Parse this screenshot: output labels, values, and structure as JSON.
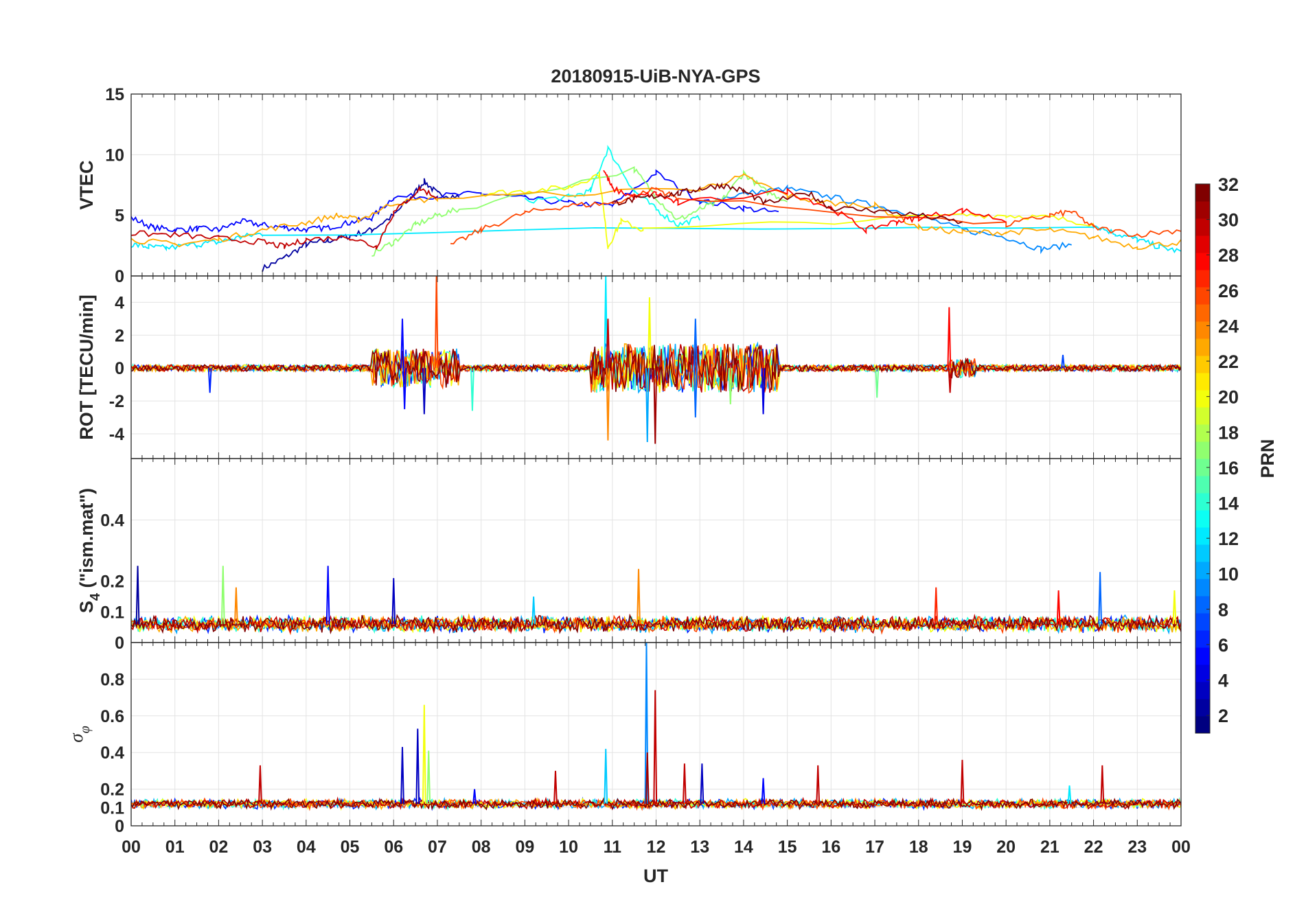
{
  "chart_data": {
    "type": "line",
    "title": "20180915-UiB-NYA-GPS",
    "xlabel": "UT",
    "xlim": [
      0,
      24
    ],
    "x_tick_labels": [
      "00",
      "01",
      "02",
      "03",
      "04",
      "05",
      "06",
      "07",
      "08",
      "09",
      "10",
      "11",
      "12",
      "13",
      "14",
      "15",
      "16",
      "17",
      "18",
      "19",
      "20",
      "21",
      "22",
      "23",
      "00"
    ],
    "grid": true,
    "colorbar": {
      "label": "PRN",
      "range": [
        1,
        32
      ],
      "ticks": [
        "2",
        "4",
        "6",
        "8",
        "10",
        "12",
        "14",
        "16",
        "18",
        "20",
        "22",
        "24",
        "26",
        "28",
        "30",
        "32"
      ],
      "colormap": "jet",
      "placement": "right"
    },
    "panels": [
      {
        "name": "vtec",
        "ylabel": "VTEC",
        "ylim": [
          0,
          15
        ],
        "yticks": [
          0,
          5,
          10,
          15
        ],
        "ytick_labels": [
          "0",
          "5",
          "10",
          "15"
        ],
        "noise": 0.25,
        "series": [
          {
            "prn": 2,
            "x": [
              3.0,
              3.5,
              4.0,
              4.5,
              5.0,
              5.5,
              6.0,
              6.4,
              6.7,
              7.0,
              7.5
            ],
            "y": [
              0.6,
              1.5,
              2.6,
              2.9,
              3.3,
              3.8,
              5.0,
              6.5,
              7.8,
              6.8,
              6.5
            ]
          },
          {
            "prn": 5,
            "x": [
              0,
              0.5,
              1,
              1.5,
              2,
              2.5,
              3,
              3.5,
              4,
              4.5,
              5,
              5.5,
              6,
              7,
              8,
              9,
              10,
              11,
              12,
              13,
              14,
              14.8
            ],
            "y": [
              4.8,
              4.0,
              3.8,
              3.9,
              3.8,
              4.5,
              4.2,
              4.0,
              3.8,
              4.0,
              4.4,
              4.8,
              6.5,
              6.6,
              6.8,
              6.4,
              6.0,
              5.8,
              8.5,
              6.2,
              5.6,
              5.2
            ]
          },
          {
            "prn": 9,
            "x": [
              13,
              14,
              15,
              16,
              17,
              18,
              19,
              20,
              20.8,
              21.5
            ],
            "y": [
              6.0,
              6.8,
              7.2,
              6.5,
              5.8,
              5.0,
              3.8,
              3.2,
              2.2,
              2.6
            ]
          },
          {
            "prn": 12,
            "x": [
              0,
              0.4,
              0.8,
              1.5,
              2,
              2.5,
              3,
              22,
              22.5,
              23,
              23.5,
              24
            ],
            "y": [
              2.6,
              2.4,
              2.3,
              2.6,
              2.8,
              3.2,
              3.5,
              4.2,
              3.5,
              3.0,
              2.4,
              2.0
            ]
          },
          {
            "prn": 13,
            "x": [
              9,
              10,
              10.5,
              10.9,
              11.5,
              12,
              12.5,
              13
            ],
            "y": [
              6.2,
              6.5,
              7.0,
              10.5,
              7.0,
              5.5,
              4.2,
              4.8
            ]
          },
          {
            "prn": 17,
            "x": [
              5.5,
              6,
              6.5,
              7,
              7.5,
              11.5,
              12,
              12.5,
              13,
              13.5,
              14,
              14.5,
              15
            ],
            "y": [
              1.8,
              2.8,
              4.2,
              5.0,
              5.5,
              8.8,
              6.5,
              4.6,
              5.5,
              6.2,
              8.5,
              7.0,
              6.2
            ]
          },
          {
            "prn": 20,
            "x": [
              8,
              9,
              10,
              10.7,
              10.9,
              11.2,
              11.7,
              19,
              20,
              21,
              22
            ],
            "y": [
              6.8,
              7.0,
              7.3,
              8.4,
              2.4,
              4.5,
              3.8,
              5.0,
              5.0,
              4.8,
              4.3
            ]
          },
          {
            "prn": 23,
            "x": [
              0,
              1,
              2,
              3,
              4,
              4.7,
              5.2,
              6,
              7,
              13,
              14,
              15,
              16,
              17,
              18,
              19,
              20,
              21,
              22,
              23,
              24
            ],
            "y": [
              3.0,
              2.6,
              3.0,
              3.8,
              4.4,
              5.0,
              4.6,
              6.0,
              6.4,
              7.2,
              8.2,
              6.6,
              6.0,
              5.8,
              4.0,
              3.6,
              3.6,
              3.8,
              3.2,
              2.4,
              2.8
            ]
          },
          {
            "prn": 26,
            "x": [
              7.3,
              8,
              9,
              10,
              11,
              12,
              12.5,
              20,
              21,
              21.5,
              22,
              23,
              24
            ],
            "y": [
              2.5,
              3.8,
              5.2,
              5.8,
              6.0,
              7.2,
              6.4,
              4.2,
              5.0,
              5.3,
              4.0,
              3.4,
              3.8
            ]
          },
          {
            "prn": 28,
            "x": [
              10.8,
              11,
              11.5,
              12,
              12.5,
              15,
              16,
              16.8,
              17.5,
              18,
              19,
              20
            ],
            "y": [
              8.8,
              7.2,
              6.5,
              6.8,
              6.0,
              7.0,
              5.6,
              3.8,
              4.5,
              4.8,
              5.4,
              4.6
            ]
          },
          {
            "prn": 30,
            "x": [
              0,
              1,
              2,
              3,
              3.5,
              4,
              5,
              5.6,
              6,
              6.6,
              7
            ],
            "y": [
              3.5,
              3.4,
              3.1,
              2.8,
              2.4,
              3.0,
              3.2,
              2.4,
              5.2,
              7.2,
              6.5
            ]
          },
          {
            "prn": 32,
            "x": [
              11,
              11.5,
              12,
              12.5,
              13,
              13.5,
              14,
              14.5,
              15.5,
              16,
              17,
              18,
              19
            ],
            "y": [
              6.0,
              6.3,
              6.6,
              6.8,
              7.2,
              7.5,
              7.0,
              6.0,
              6.8,
              5.6,
              5.4,
              5.0,
              4.4
            ]
          }
        ]
      },
      {
        "name": "rot",
        "ylabel": "ROT [TECU/min]",
        "ylim": [
          -5.5,
          5.6
        ],
        "yticks": [
          -4,
          -2,
          0,
          2,
          4
        ],
        "ytick_labels": [
          "-4",
          "-2",
          "0",
          "2",
          "4"
        ],
        "baseline": 0,
        "noise": 0.2,
        "active_windows": [
          [
            5.5,
            7.5,
            1.2
          ],
          [
            10.5,
            14.8,
            1.5
          ],
          [
            18.7,
            19.3,
            0.6
          ]
        ],
        "spikes": [
          {
            "prn": 5,
            "x": 6.2,
            "y": 3.0
          },
          {
            "prn": 5,
            "x": 6.25,
            "y": -2.5
          },
          {
            "prn": 3,
            "x": 6.7,
            "y": -2.8
          },
          {
            "prn": 26,
            "x": 6.98,
            "y": 5.6
          },
          {
            "prn": 14,
            "x": 7.8,
            "y": -2.6
          },
          {
            "prn": 12,
            "x": 10.85,
            "y": 5.6
          },
          {
            "prn": 24,
            "x": 10.9,
            "y": -4.4
          },
          {
            "prn": 30,
            "x": 10.9,
            "y": 3.0
          },
          {
            "prn": 10,
            "x": 11.8,
            "y": -4.5
          },
          {
            "prn": 20,
            "x": 11.85,
            "y": 4.3
          },
          {
            "prn": 31,
            "x": 11.98,
            "y": -4.6
          },
          {
            "prn": 8,
            "x": 12.9,
            "y": -3.0
          },
          {
            "prn": 8,
            "x": 12.9,
            "y": 3.0
          },
          {
            "prn": 17,
            "x": 13.7,
            "y": -2.2
          },
          {
            "prn": 4,
            "x": 14.45,
            "y": -2.8
          },
          {
            "prn": 28,
            "x": 18.7,
            "y": 3.7
          },
          {
            "prn": 30,
            "x": 18.72,
            "y": -1.5
          },
          {
            "prn": 16,
            "x": 17.05,
            "y": -1.8
          },
          {
            "prn": 6,
            "x": 1.8,
            "y": -1.5
          },
          {
            "prn": 7,
            "x": 21.3,
            "y": 0.8
          }
        ]
      },
      {
        "name": "s4",
        "ylabel": "S4 (\"ism.mat\")",
        "ylabel_main": "S",
        "ylabel_sub": "4",
        "ylabel_rest": " (\"ism.mat\")",
        "ylim": [
          0,
          0.6
        ],
        "yticks": [
          0,
          0.1,
          0.2,
          0.4
        ],
        "ytick_labels": [
          "0",
          "0.1",
          "0.2",
          "0.4"
        ],
        "baseline": 0.06,
        "noise": 0.02,
        "spikes": [
          {
            "prn": 2,
            "x": 0.15,
            "y": 0.25
          },
          {
            "prn": 17,
            "x": 2.1,
            "y": 0.25
          },
          {
            "prn": 24,
            "x": 2.4,
            "y": 0.18
          },
          {
            "prn": 5,
            "x": 4.5,
            "y": 0.25
          },
          {
            "prn": 3,
            "x": 6.0,
            "y": 0.21
          },
          {
            "prn": 11,
            "x": 9.2,
            "y": 0.15
          },
          {
            "prn": 24,
            "x": 11.6,
            "y": 0.24
          },
          {
            "prn": 27,
            "x": 18.4,
            "y": 0.18
          },
          {
            "prn": 28,
            "x": 21.2,
            "y": 0.17
          },
          {
            "prn": 8,
            "x": 22.15,
            "y": 0.23
          },
          {
            "prn": 20,
            "x": 23.85,
            "y": 0.17
          }
        ]
      },
      {
        "name": "sigma_phi",
        "ylabel": "σφ",
        "ylabel_main": "σ",
        "ylabel_sub": "φ",
        "ylim": [
          0,
          1.0
        ],
        "yticks": [
          0,
          0.1,
          0.2,
          0.4,
          0.6,
          0.8
        ],
        "ytick_labels": [
          "0",
          "0.1",
          "0.2",
          "0.4",
          "0.6",
          "0.8"
        ],
        "baseline": 0.12,
        "noise": 0.02,
        "spikes": [
          {
            "prn": 30,
            "x": 2.95,
            "y": 0.33
          },
          {
            "prn": 3,
            "x": 6.2,
            "y": 0.43
          },
          {
            "prn": 3,
            "x": 6.55,
            "y": 0.53
          },
          {
            "prn": 20,
            "x": 6.7,
            "y": 0.66
          },
          {
            "prn": 17,
            "x": 6.8,
            "y": 0.41
          },
          {
            "prn": 5,
            "x": 7.85,
            "y": 0.2
          },
          {
            "prn": 30,
            "x": 9.7,
            "y": 0.3
          },
          {
            "prn": 11,
            "x": 10.85,
            "y": 0.42
          },
          {
            "prn": 9,
            "x": 11.78,
            "y": 1.0
          },
          {
            "prn": 31,
            "x": 11.8,
            "y": 0.4
          },
          {
            "prn": 30,
            "x": 11.98,
            "y": 0.74
          },
          {
            "prn": 30,
            "x": 12.65,
            "y": 0.34
          },
          {
            "prn": 3,
            "x": 13.05,
            "y": 0.34
          },
          {
            "prn": 5,
            "x": 14.45,
            "y": 0.26
          },
          {
            "prn": 30,
            "x": 15.7,
            "y": 0.33
          },
          {
            "prn": 30,
            "x": 19.0,
            "y": 0.36
          },
          {
            "prn": 30,
            "x": 22.2,
            "y": 0.33
          },
          {
            "prn": 12,
            "x": 21.45,
            "y": 0.22
          }
        ]
      }
    ]
  }
}
